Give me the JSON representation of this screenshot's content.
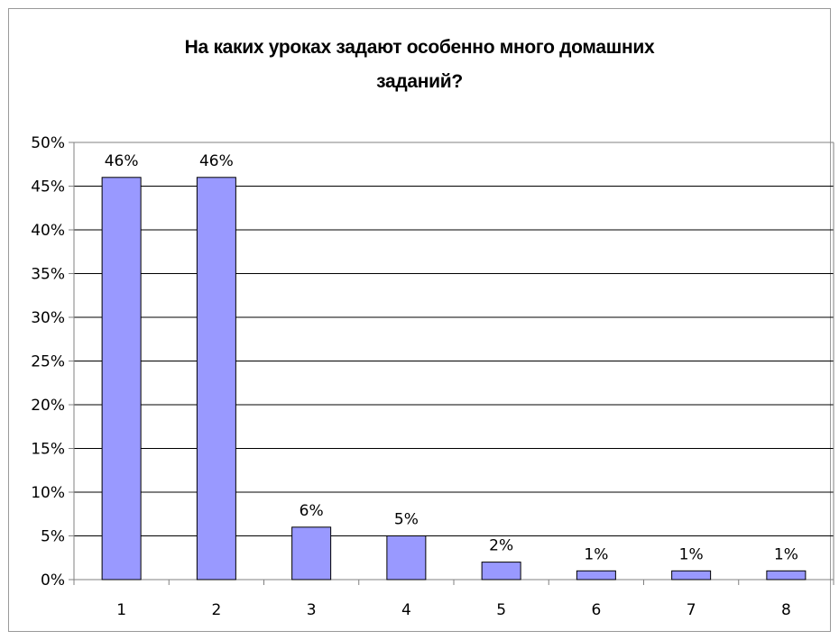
{
  "chart_data": {
    "type": "bar",
    "title_lines": [
      "На каких уроках задают особенно много домашних",
      "заданий?"
    ],
    "categories": [
      "1",
      "2",
      "3",
      "4",
      "5",
      "6",
      "7",
      "8"
    ],
    "values": [
      46,
      46,
      6,
      5,
      2,
      1,
      1,
      1
    ],
    "data_labels": [
      "46%",
      "46%",
      "6%",
      "5%",
      "2%",
      "1%",
      "1%",
      "1%"
    ],
    "y_ticks": [
      "0%",
      "5%",
      "10%",
      "15%",
      "20%",
      "25%",
      "30%",
      "35%",
      "40%",
      "45%",
      "50%"
    ],
    "ylim": [
      0,
      50
    ],
    "grid": true,
    "legend": "none",
    "colors": {
      "bar_fill": "#9999ff",
      "bar_stroke": "#000000",
      "grid": "#000000",
      "axis": "#808080"
    }
  }
}
